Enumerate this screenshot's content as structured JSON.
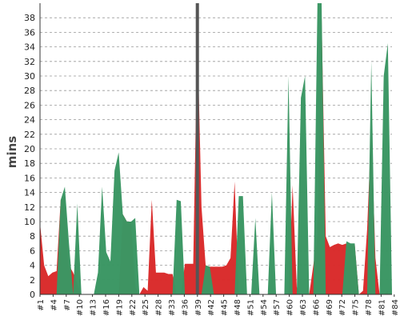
{
  "chart_data": {
    "type": "area",
    "title": "",
    "xlabel": "",
    "ylabel": "mins",
    "ylim": [
      0,
      40
    ],
    "yticks": [
      0,
      2,
      4,
      6,
      8,
      10,
      12,
      14,
      16,
      18,
      20,
      22,
      24,
      26,
      28,
      30,
      32,
      34,
      36,
      38
    ],
    "x_tick_labels": [
      "#1",
      "#4",
      "#7",
      "#10",
      "#13",
      "#16",
      "#19",
      "#22",
      "#25",
      "#28",
      "#33",
      "#36",
      "#39",
      "#42",
      "#45",
      "#48",
      "#51",
      "#54",
      "#57",
      "#60",
      "#63",
      "#66",
      "#69",
      "#72",
      "#75",
      "#78",
      "#81",
      "#84"
    ],
    "grid": true,
    "colors": {
      "red": "#d92b2b",
      "green": "#3a9663",
      "cursor": "#555555",
      "grid": "#999999"
    },
    "series": [
      {
        "color": "#d92b2b",
        "points": [
          [
            0,
            9.8
          ],
          [
            1,
            4
          ],
          [
            2,
            2.5
          ],
          [
            3,
            3
          ],
          [
            4,
            3.2
          ],
          [
            5,
            13
          ],
          [
            6,
            13.5
          ],
          [
            7,
            4
          ],
          [
            8,
            3
          ],
          [
            9,
            1.5
          ],
          [
            10,
            0
          ],
          [
            11,
            0
          ],
          [
            12,
            0
          ],
          [
            13,
            0
          ],
          [
            14,
            0
          ],
          [
            15,
            0
          ],
          [
            16,
            0
          ],
          [
            17,
            0
          ],
          [
            18,
            0
          ],
          [
            19,
            0
          ],
          [
            20,
            11
          ],
          [
            21,
            10
          ],
          [
            22,
            10
          ],
          [
            23,
            1
          ],
          [
            24,
            0
          ],
          [
            25,
            1
          ],
          [
            26,
            0.5
          ],
          [
            27,
            13
          ],
          [
            28,
            3
          ],
          [
            29,
            3
          ],
          [
            30,
            3
          ],
          [
            31,
            2.8
          ],
          [
            32,
            2.8
          ],
          [
            33,
            0
          ],
          [
            34,
            0
          ],
          [
            35,
            4.2
          ],
          [
            36,
            4.2
          ],
          [
            37,
            4.2
          ],
          [
            38,
            36
          ],
          [
            39,
            12
          ],
          [
            40,
            4
          ],
          [
            41,
            3.8
          ],
          [
            42,
            3.8
          ],
          [
            43,
            3.8
          ],
          [
            44,
            3.8
          ],
          [
            45,
            4
          ],
          [
            46,
            5
          ],
          [
            47,
            15.5
          ],
          [
            48,
            0
          ],
          [
            49,
            0
          ],
          [
            50,
            0
          ],
          [
            51,
            0
          ],
          [
            52,
            0
          ],
          [
            53,
            0
          ],
          [
            54,
            0
          ],
          [
            55,
            0
          ],
          [
            56,
            0
          ],
          [
            57,
            0
          ],
          [
            58,
            0
          ],
          [
            59,
            0
          ],
          [
            60,
            0
          ],
          [
            61,
            15
          ],
          [
            62,
            1
          ],
          [
            63,
            0
          ],
          [
            64,
            0
          ],
          [
            65,
            0
          ],
          [
            66,
            4
          ],
          [
            67,
            8
          ],
          [
            68,
            38
          ],
          [
            69,
            8
          ],
          [
            70,
            6.5
          ],
          [
            71,
            6.8
          ],
          [
            72,
            7
          ],
          [
            73,
            6.8
          ],
          [
            74,
            7
          ],
          [
            75,
            6.8
          ],
          [
            76,
            6.9
          ],
          [
            77,
            0
          ],
          [
            78,
            0.5
          ],
          [
            79,
            9
          ],
          [
            80,
            23
          ],
          [
            81,
            5
          ],
          [
            82,
            0
          ],
          [
            83,
            0
          ],
          [
            84,
            0.5
          ]
        ]
      },
      {
        "color": "#3a9663",
        "points": [
          [
            4,
            0
          ],
          [
            5,
            13
          ],
          [
            6,
            14.8
          ],
          [
            7,
            7
          ],
          [
            8,
            0
          ],
          [
            9,
            12.5
          ],
          [
            10,
            0
          ],
          [
            11,
            0
          ],
          [
            12,
            0
          ],
          [
            13,
            0
          ],
          [
            14,
            3
          ],
          [
            15,
            14.8
          ],
          [
            16,
            5.8
          ],
          [
            17,
            4.5
          ],
          [
            18,
            17
          ],
          [
            19,
            19.5
          ],
          [
            20,
            11
          ],
          [
            21,
            10
          ],
          [
            22,
            10
          ],
          [
            23,
            10.5
          ],
          [
            24,
            0
          ],
          [
            25,
            0
          ],
          [
            26,
            0
          ],
          [
            27,
            0
          ],
          [
            28,
            0
          ],
          [
            29,
            0
          ],
          [
            30,
            0
          ],
          [
            31,
            0
          ],
          [
            32,
            0
          ],
          [
            33,
            13
          ],
          [
            34,
            12.8
          ],
          [
            35,
            0
          ],
          [
            36,
            0
          ],
          [
            37,
            0
          ],
          [
            38,
            0
          ],
          [
            39,
            0
          ],
          [
            40,
            4
          ],
          [
            41,
            3.8
          ],
          [
            42,
            0
          ],
          [
            43,
            0
          ],
          [
            44,
            0
          ],
          [
            45,
            0
          ],
          [
            46,
            0
          ],
          [
            47,
            0
          ],
          [
            48,
            13.5
          ],
          [
            49,
            13.5
          ],
          [
            50,
            0
          ],
          [
            51,
            0
          ],
          [
            52,
            10.5
          ],
          [
            53,
            0
          ],
          [
            54,
            0
          ],
          [
            55,
            0
          ],
          [
            56,
            14
          ],
          [
            57,
            0
          ],
          [
            58,
            0
          ],
          [
            59,
            0
          ],
          [
            60,
            30
          ],
          [
            61,
            0
          ],
          [
            62,
            0
          ],
          [
            63,
            27
          ],
          [
            64,
            30
          ],
          [
            65,
            0
          ],
          [
            66,
            0
          ],
          [
            67,
            40
          ],
          [
            68,
            40
          ],
          [
            69,
            0
          ],
          [
            70,
            0
          ],
          [
            71,
            0
          ],
          [
            72,
            0
          ],
          [
            73,
            0
          ],
          [
            74,
            7.3
          ],
          [
            75,
            7
          ],
          [
            76,
            7
          ],
          [
            77,
            0
          ],
          [
            78,
            0
          ],
          [
            79,
            0
          ],
          [
            80,
            32
          ],
          [
            81,
            0
          ],
          [
            82,
            0
          ],
          [
            83,
            30
          ],
          [
            84,
            34.5
          ],
          [
            85,
            0
          ]
        ]
      }
    ],
    "cursor_index": 38
  }
}
